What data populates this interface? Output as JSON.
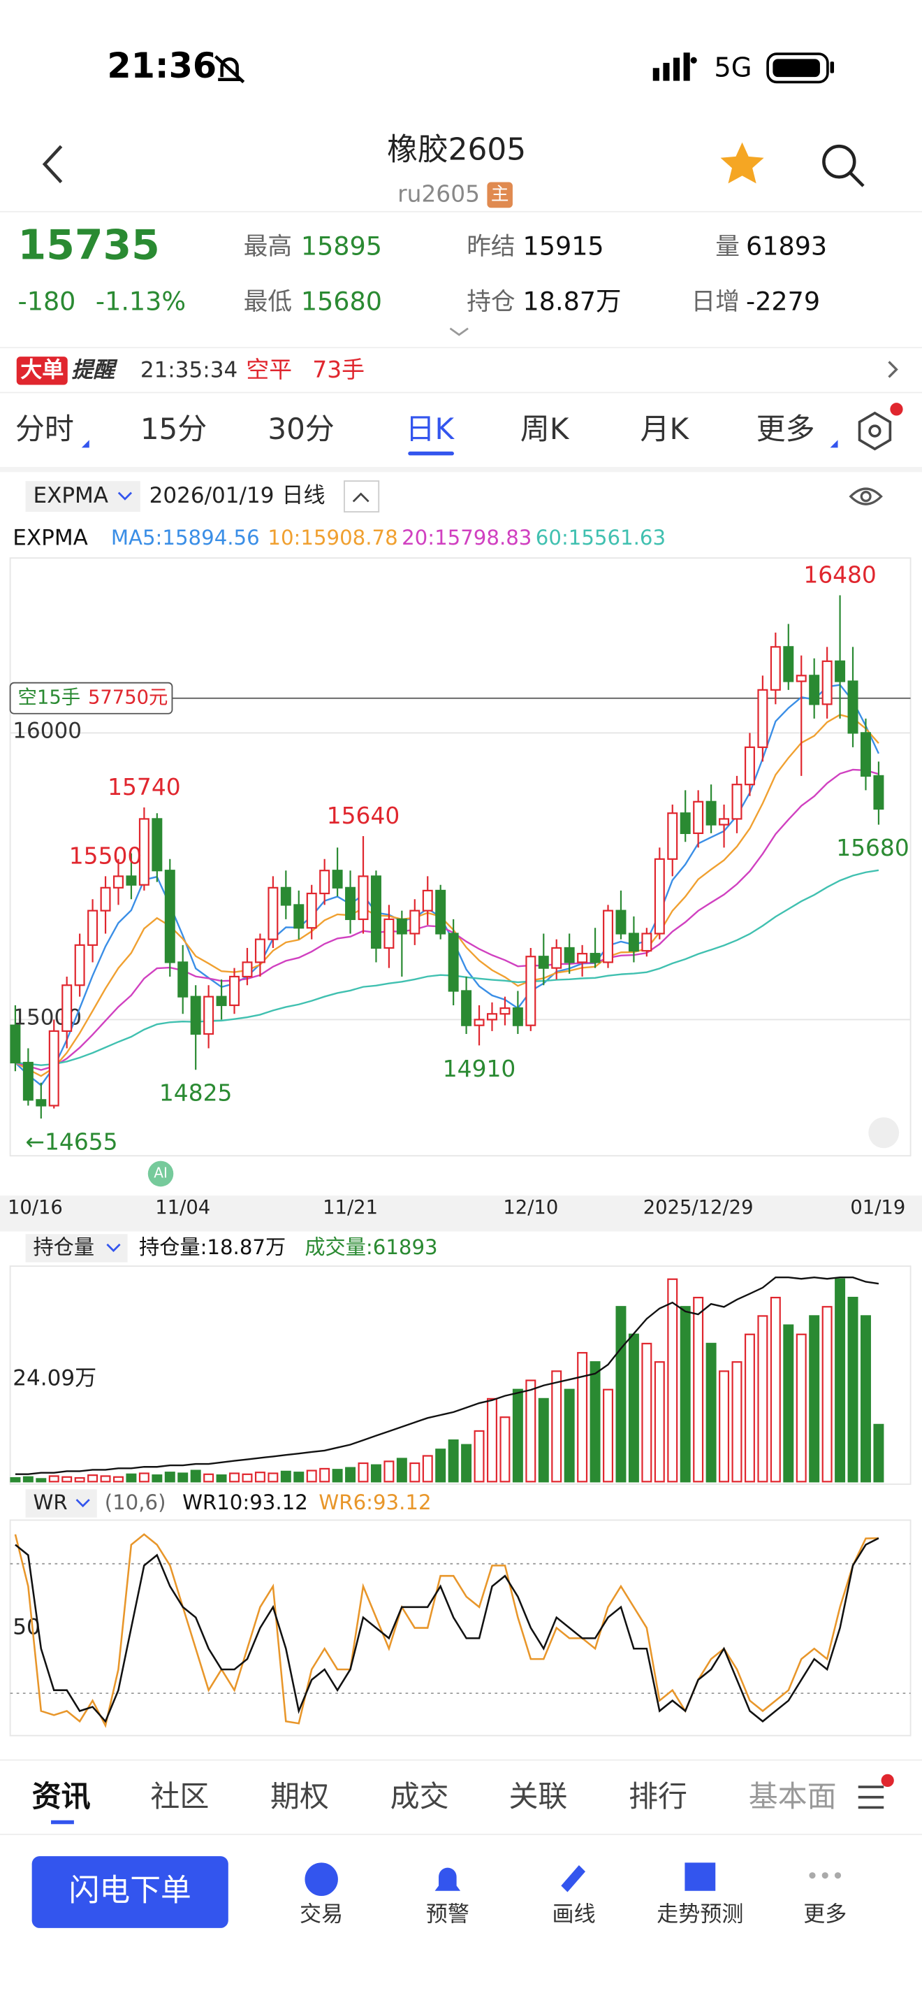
{
  "status": {
    "time": "21:36",
    "network": "5G"
  },
  "header": {
    "title": "橡胶2605",
    "code": "ru2605",
    "badge": "主"
  },
  "quote": {
    "price": "15735",
    "change": "-180",
    "change_pct": "-1.13%",
    "high_label": "最高",
    "high": "15895",
    "low_label": "最低",
    "low": "15680",
    "prev_label": "昨结",
    "prev": "15915",
    "oi_label": "持仓",
    "oi": "18.87万",
    "vol_label": "量",
    "vol": "61893",
    "inc_label": "日增",
    "inc": "-2279"
  },
  "alert": {
    "badge": "大单",
    "title": "提醒",
    "time": "21:35:34",
    "action": "空平",
    "qty": "73手"
  },
  "tabs": [
    "分时",
    "15分",
    "30分",
    "日K",
    "周K",
    "月K",
    "更多"
  ],
  "indicator": {
    "name": "EXPMA",
    "date": "2026/01/19",
    "period": "日线"
  },
  "chart_data": {
    "type": "candlestick",
    "ma_title": "EXPMA",
    "ma_legend": [
      {
        "label": "MA5:15894.56",
        "color": "#3a8ee6",
        "period": 5
      },
      {
        "label": "10:15908.78",
        "color": "#f0a030",
        "period": 10
      },
      {
        "label": "20:15798.83",
        "color": "#d040c0",
        "period": 20
      },
      {
        "label": "60:15561.63",
        "color": "#40c0b0",
        "period": 60
      }
    ],
    "categories": [
      null,
      "10/16",
      null,
      null,
      null,
      null,
      null,
      null,
      null,
      null,
      null,
      null,
      null,
      "11/04",
      null,
      null,
      null,
      null,
      null,
      null,
      null,
      null,
      null,
      null,
      null,
      null,
      "11/21",
      null,
      null,
      null,
      null,
      null,
      null,
      null,
      null,
      null,
      null,
      null,
      null,
      null,
      "12/10",
      null,
      null,
      null,
      null,
      null,
      null,
      null,
      null,
      null,
      null,
      null,
      null,
      "2025/12/29",
      null,
      null,
      null,
      null,
      null,
      null,
      null,
      null,
      null,
      null,
      null,
      null,
      null,
      "01/19"
    ],
    "candles": [
      [
        14980,
        15050,
        14820,
        14850
      ],
      [
        14850,
        14900,
        14700,
        14720
      ],
      [
        14720,
        14780,
        14655,
        14700
      ],
      [
        14700,
        15000,
        14690,
        14960
      ],
      [
        14960,
        15150,
        14900,
        15120
      ],
      [
        15120,
        15300,
        15080,
        15260
      ],
      [
        15260,
        15420,
        15200,
        15380
      ],
      [
        15380,
        15500,
        15300,
        15460
      ],
      [
        15460,
        15560,
        15400,
        15500
      ],
      [
        15500,
        15580,
        15420,
        15470
      ],
      [
        15470,
        15740,
        15450,
        15700
      ],
      [
        15700,
        15720,
        15480,
        15520
      ],
      [
        15520,
        15560,
        15150,
        15200
      ],
      [
        15200,
        15260,
        15020,
        15080
      ],
      [
        15080,
        15120,
        14825,
        14950
      ],
      [
        14950,
        15120,
        14900,
        15080
      ],
      [
        15080,
        15140,
        15000,
        15050
      ],
      [
        15050,
        15180,
        15020,
        15150
      ],
      [
        15150,
        15250,
        15120,
        15200
      ],
      [
        15200,
        15300,
        15150,
        15280
      ],
      [
        15280,
        15500,
        15250,
        15460
      ],
      [
        15460,
        15520,
        15350,
        15400
      ],
      [
        15400,
        15450,
        15280,
        15320
      ],
      [
        15320,
        15470,
        15280,
        15440
      ],
      [
        15440,
        15560,
        15400,
        15520
      ],
      [
        15520,
        15600,
        15430,
        15460
      ],
      [
        15460,
        15520,
        15300,
        15350
      ],
      [
        15350,
        15640,
        15300,
        15500
      ],
      [
        15500,
        15520,
        15200,
        15250
      ],
      [
        15250,
        15400,
        15180,
        15350
      ],
      [
        15350,
        15380,
        15150,
        15300
      ],
      [
        15300,
        15420,
        15260,
        15380
      ],
      [
        15380,
        15500,
        15330,
        15450
      ],
      [
        15450,
        15470,
        15280,
        15300
      ],
      [
        15300,
        15350,
        15050,
        15100
      ],
      [
        15100,
        15150,
        14950,
        14980
      ],
      [
        14980,
        15050,
        14910,
        15000
      ],
      [
        15000,
        15060,
        14960,
        15020
      ],
      [
        15020,
        15080,
        14980,
        15040
      ],
      [
        15040,
        15100,
        14950,
        14980
      ],
      [
        14980,
        15250,
        14960,
        15220
      ],
      [
        15220,
        15300,
        15120,
        15180
      ],
      [
        15180,
        15280,
        15140,
        15250
      ],
      [
        15250,
        15300,
        15160,
        15200
      ],
      [
        15200,
        15260,
        15150,
        15230
      ],
      [
        15230,
        15320,
        15180,
        15200
      ],
      [
        15200,
        15400,
        15180,
        15380
      ],
      [
        15380,
        15450,
        15280,
        15300
      ],
      [
        15300,
        15360,
        15200,
        15240
      ],
      [
        15240,
        15320,
        15220,
        15300
      ],
      [
        15300,
        15600,
        15280,
        15560
      ],
      [
        15560,
        15750,
        15500,
        15720
      ],
      [
        15720,
        15800,
        15620,
        15650
      ],
      [
        15650,
        15800,
        15600,
        15760
      ],
      [
        15760,
        15820,
        15650,
        15680
      ],
      [
        15680,
        15750,
        15600,
        15700
      ],
      [
        15700,
        15850,
        15650,
        15820
      ],
      [
        15820,
        16000,
        15780,
        15950
      ],
      [
        15950,
        16200,
        15900,
        16150
      ],
      [
        16150,
        16350,
        16100,
        16300
      ],
      [
        16300,
        16380,
        16150,
        16180
      ],
      [
        16180,
        16270,
        15850,
        16200
      ],
      [
        16200,
        16260,
        16050,
        16100
      ],
      [
        16100,
        16300,
        16050,
        16250
      ],
      [
        16250,
        16480,
        16050,
        16180
      ],
      [
        16180,
        16300,
        15950,
        16000
      ],
      [
        16000,
        16050,
        15800,
        15850
      ],
      [
        15850,
        15900,
        15680,
        15735
      ]
    ],
    "ylim": [
      14525,
      16610
    ],
    "yticks": [
      15000,
      16000
    ],
    "grid": true,
    "up_color": "#e0262e",
    "down_color": "#2a8a32",
    "annotations": {
      "highs": [
        15740,
        15640,
        15500,
        16480
      ],
      "lows": [
        14825,
        14910,
        {
          "value": 14655,
          "label": "←14655"
        },
        15680
      ]
    },
    "position_line": {
      "side": "空15手",
      "amount": "57750元",
      "price": 16121
    },
    "oi_title": "持仓量",
    "oi_text": "持仓量:18.87万",
    "vol_text": "成交量:61893",
    "panel_label": "24.09万",
    "volume": [
      4000,
      5000,
      3000,
      6000,
      5000,
      4000,
      7000,
      6000,
      5000,
      8000,
      9000,
      7000,
      10000,
      9000,
      12000,
      8000,
      7000,
      9000,
      8000,
      10000,
      9000,
      11000,
      10000,
      12000,
      14000,
      13000,
      15000,
      20000,
      18000,
      22000,
      25000,
      20000,
      28000,
      35000,
      45000,
      40000,
      55000,
      90000,
      70000,
      100000,
      110000,
      90000,
      120000,
      100000,
      140000,
      130000,
      100000,
      190000,
      160000,
      150000,
      130000,
      220000,
      190000,
      200000,
      150000,
      120000,
      130000,
      160000,
      180000,
      200000,
      170000,
      160000,
      180000,
      190000,
      220000,
      200000,
      180000,
      61893
    ],
    "volume_ylim": [
      0,
      230000
    ],
    "oi": [
      6.0,
      6.0,
      6.1,
      6.1,
      6.2,
      6.2,
      6.3,
      6.3,
      6.4,
      6.4,
      6.5,
      6.5,
      6.6,
      6.6,
      6.7,
      6.7,
      6.8,
      6.9,
      7.0,
      7.1,
      7.2,
      7.3,
      7.4,
      7.5,
      7.6,
      7.8,
      8.0,
      8.3,
      8.6,
      8.9,
      9.2,
      9.5,
      9.8,
      10.0,
      10.2,
      10.5,
      10.8,
      11.0,
      11.3,
      11.5,
      11.7,
      12.0,
      12.2,
      12.4,
      12.6,
      12.8,
      13.4,
      14.5,
      15.5,
      16.5,
      17.2,
      17.6,
      17.0,
      16.8,
      17.5,
      17.3,
      17.8,
      18.2,
      18.6,
      19.3,
      19.3,
      19.2,
      19.3,
      19.2,
      19.3,
      19.3,
      19.0,
      18.87
    ],
    "oi_ylim": [
      5.5,
      19.8
    ],
    "wr_title": "WR",
    "wr_params": "(10,6)",
    "wr10_text": "WR10:93.12",
    "wr6_text": "WR6:93.12",
    "wr10_color": "#111111",
    "wr6_color": "#e8962a",
    "wr10": [
      90,
      85,
      40,
      20,
      20,
      10,
      12,
      5,
      20,
      50,
      80,
      85,
      70,
      60,
      55,
      40,
      30,
      30,
      35,
      50,
      60,
      40,
      10,
      25,
      30,
      20,
      30,
      55,
      50,
      45,
      60,
      60,
      60,
      70,
      55,
      45,
      45,
      70,
      75,
      65,
      50,
      40,
      55,
      50,
      45,
      45,
      55,
      60,
      40,
      40,
      10,
      15,
      10,
      25,
      30,
      40,
      25,
      10,
      5,
      10,
      15,
      25,
      35,
      30,
      50,
      80,
      90,
      93.12
    ],
    "wr6": [
      95,
      70,
      10,
      8,
      10,
      5,
      15,
      3,
      30,
      90,
      95,
      90,
      80,
      60,
      40,
      20,
      30,
      20,
      40,
      60,
      70,
      5,
      4,
      30,
      40,
      30,
      30,
      70,
      55,
      40,
      60,
      50,
      50,
      75,
      75,
      65,
      60,
      80,
      80,
      55,
      35,
      35,
      50,
      45,
      45,
      40,
      60,
      70,
      60,
      50,
      15,
      20,
      10,
      25,
      35,
      40,
      30,
      15,
      10,
      15,
      20,
      35,
      40,
      35,
      60,
      80,
      93,
      93.12
    ],
    "wr_ylim": [
      0,
      100
    ],
    "wr_ticks": [
      50
    ]
  },
  "ai_badge": "AI",
  "bottom_tabs": [
    "资讯",
    "社区",
    "期权",
    "成交",
    "关联",
    "排行",
    "基本面"
  ],
  "nav": {
    "button": "闪电下单",
    "items": [
      "交易",
      "预警",
      "画线",
      "走势预测",
      "更多"
    ]
  }
}
